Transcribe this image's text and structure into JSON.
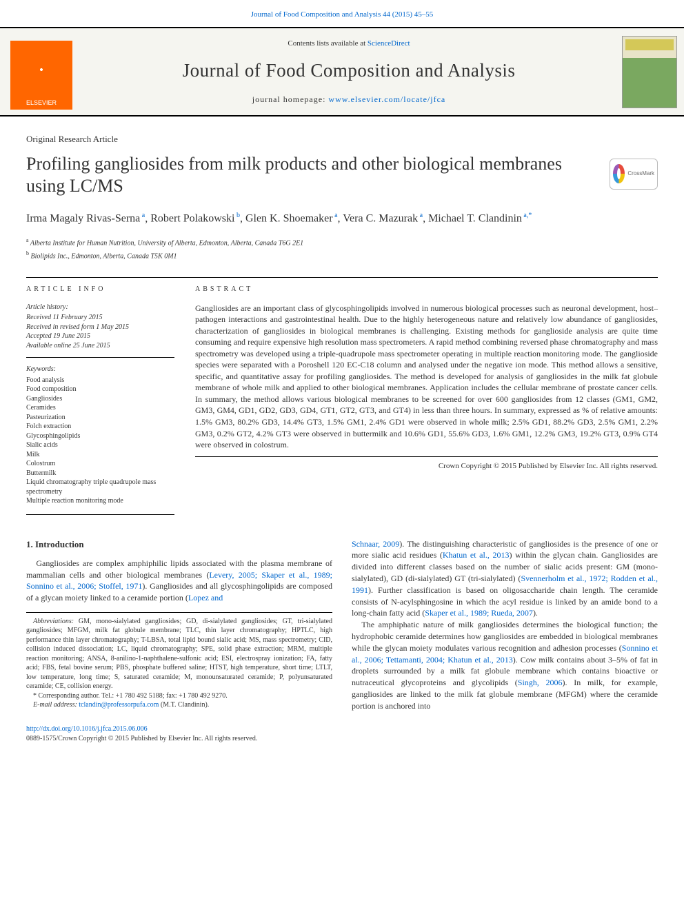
{
  "colors": {
    "link": "#0066cc",
    "elsevier_orange": "#ff6600",
    "text": "#333333",
    "rule": "#000000",
    "bg": "#ffffff"
  },
  "typography": {
    "body_pt": 12,
    "title_pt": 26,
    "journal_title_pt": 27,
    "authors_pt": 16,
    "small_pt": 10,
    "family": "Georgia / Times"
  },
  "header": {
    "citation": "Journal of Food Composition and Analysis 44 (2015) 45–55",
    "contents_prefix": "Contents lists available at ",
    "contents_link": "ScienceDirect",
    "journal_title": "Journal of Food Composition and Analysis",
    "homepage_prefix": "journal homepage: ",
    "homepage_link": "www.elsevier.com/locate/jfca",
    "publisher_logo_label": "ELSEVIER",
    "crossmark_label": "CrossMark"
  },
  "article": {
    "type": "Original Research Article",
    "title": "Profiling gangliosides from milk products and other biological membranes using LC/MS",
    "authors_html": "Irma Magaly Rivas-Serna<sup> a</sup>, Robert Polakowski<sup> b</sup>, Glen K. Shoemaker<sup> a</sup>, Vera C. Mazurak<sup> a</sup>, Michael T. Clandinin<sup> a,*</sup>",
    "affiliations": [
      {
        "marker": "a",
        "text": "Alberta Institute for Human Nutrition, University of Alberta, Edmonton, Alberta, Canada T6G 2E1"
      },
      {
        "marker": "b",
        "text": "Biolipids Inc., Edmonton, Alberta, Canada T5K 0M1"
      }
    ]
  },
  "info": {
    "label": "ARTICLE INFO",
    "history_header": "Article history:",
    "history": [
      "Received 11 February 2015",
      "Received in revised form 1 May 2015",
      "Accepted 19 June 2015",
      "Available online 25 June 2015"
    ],
    "keywords_header": "Keywords:",
    "keywords": [
      "Food analysis",
      "Food composition",
      "Gangliosides",
      "Ceramides",
      "Pasteurization",
      "Folch extraction",
      "Glycosphingolipids",
      "Sialic acids",
      "Milk",
      "Colostrum",
      "Buttermilk",
      "Liquid chromatography triple quadrupole mass spectrometry",
      "Multiple reaction monitoring mode"
    ]
  },
  "abstract": {
    "label": "ABSTRACT",
    "text": "Gangliosides are an important class of glycosphingolipids involved in numerous biological processes such as neuronal development, host–pathogen interactions and gastrointestinal health. Due to the highly heterogeneous nature and relatively low abundance of gangliosides, characterization of gangliosides in biological membranes is challenging. Existing methods for ganglioside analysis are quite time consuming and require expensive high resolution mass spectrometers. A rapid method combining reversed phase chromatography and mass spectrometry was developed using a triple-quadrupole mass spectrometer operating in multiple reaction monitoring mode. The ganglioside species were separated with a Poroshell 120 EC-C18 column and analysed under the negative ion mode. This method allows a sensitive, specific, and quantitative assay for profiling gangliosides. The method is developed for analysis of gangliosides in the milk fat globule membrane of whole milk and applied to other biological membranes. Application includes the cellular membrane of prostate cancer cells. In summary, the method allows various biological membranes to be screened for over 600 gangliosides from 12 classes (GM1, GM2, GM3, GM4, GD1, GD2, GD3, GD4, GT1, GT2, GT3, and GT4) in less than three hours. In summary, expressed as % of relative amounts: 1.5% GM3, 80.2% GD3, 14.4% GT3, 1.5% GM1, 2.4% GD1 were observed in whole milk; 2.5% GD1, 88.2% GD3, 2.5% GM1, 2.2% GM3, 0.2% GT2, 4.2% GT3 were observed in buttermilk and 10.6% GD1, 55.6% GD3, 1.6% GM1, 12.2% GM3, 19.2% GT3, 0.9% GT4 were observed in colostrum.",
    "copyright": "Crown Copyright © 2015 Published by Elsevier Inc. All rights reserved."
  },
  "body": {
    "section_heading": "1. Introduction",
    "para1_a": "Gangliosides are complex amphiphilic lipids associated with the plasma membrane of mammalian cells and other biological membranes (",
    "para1_link1": "Levery, 2005; Skaper et al., 1989; Sonnino et al., 2006; Stoffel, 1971",
    "para1_b": "). Gangliosides and all glycosphingolipids are composed of a glycan moiety linked to a ceramide portion (",
    "para1_link2": "Lopez and",
    "para2_pre": "Schnaar, 2009",
    "para2_a": "). The distinguishing characteristic of gangliosides is the presence of one or more sialic acid residues (",
    "para2_link1": "Khatun et al., 2013",
    "para2_b": ") within the glycan chain. Gangliosides are divided into different classes based on the number of sialic acids present: GM (mono-sialylated), GD (di-sialylated) GT (tri-sialylated) (",
    "para2_link2": "Svennerholm et al., 1972; Rodden et al., 1991",
    "para2_c": "). Further classification is based on oligosaccharide chain length. The ceramide consists of N-acylsphingosine in which the acyl residue is linked by an amide bond to a long-chain fatty acid (",
    "para2_link3": "Skaper et al., 1989; Rueda, 2007",
    "para2_d": ").",
    "para3_a": "The amphiphatic nature of milk gangliosides determines the biological function; the hydrophobic ceramide determines how gangliosides are embedded in biological membranes while the glycan moiety modulates various recognition and adhesion processes (",
    "para3_link1": "Sonnino et al., 2006; Tettamanti, 2004; Khatun et al., 2013",
    "para3_b": "). Cow milk contains about 3–5% of fat in droplets surrounded by a milk fat globule membrane which contains bioactive or nutraceutical glycoproteins and glycolipids (",
    "para3_link2": "Singh, 2006",
    "para3_c": "). In milk, for example, gangliosides are linked to the milk fat globule membrane (MFGM) where the ceramide portion is anchored into"
  },
  "footnotes": {
    "abbrev_label": "Abbreviations:",
    "abbrev_text": " GM, mono-sialylated gangliosides; GD, di-sialylated gangliosides; GT, tri-sialylated gangliosides; MFGM, milk fat globule membrane; TLC, thin layer chromatography; HPTLC, high performance thin layer chromatography; T-LBSA, total lipid bound sialic acid; MS, mass spectrometry; CID, collision induced dissociation; LC, liquid chromatography; SPE, solid phase extraction; MRM, multiple reaction monitoring; ANSA, 8-anilino-1-naphthalene-sulfonic acid; ESI, electrospray ionization; FA, fatty acid; FBS, fetal bovine serum; PBS, phosphate buffered saline; HTST, high temperature, short time; LTLT, low temperature, long time; S, saturated ceramide; M, monounsaturated ceramide; P, polyunsaturated ceramide; CE, collision energy.",
    "corr_label": "* Corresponding author. Tel.: +1 780 492 5188; fax: +1 780 492 9270.",
    "email_label": "E-mail address: ",
    "email": "tclandin@professorpufa.com",
    "email_suffix": " (M.T. Clandinin)."
  },
  "footer": {
    "doi": "http://dx.doi.org/10.1016/j.jfca.2015.06.006",
    "issn_line": "0889-1575/Crown Copyright © 2015 Published by Elsevier Inc. All rights reserved."
  }
}
